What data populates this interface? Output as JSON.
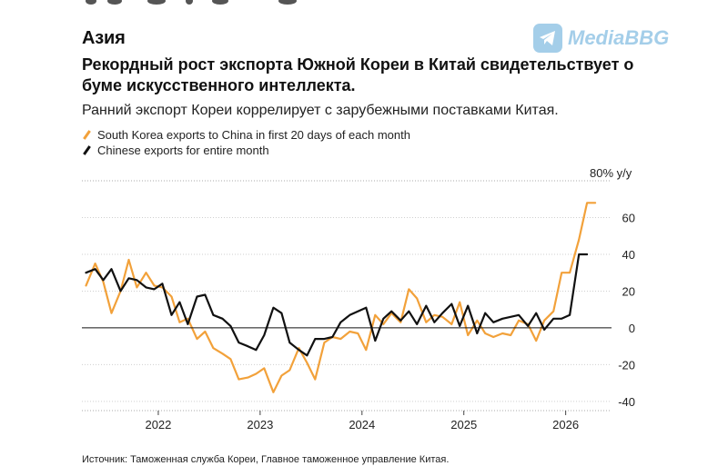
{
  "section": "Азия",
  "headline": "Рекордный рост экспорта Южной Кореи в Китай свидетельствует о буме искусственного интеллекта.",
  "subtitle": "Ранний экспорт Кореи коррелирует с зарубежными поставками Китая.",
  "watermark": "MediaBBG",
  "source": "Источник: Таможенная служба Кореи, Главное таможенное управление Китая.",
  "colors": {
    "korea": "#f2a13a",
    "china": "#111111",
    "grid": "#cfcfcf"
  },
  "chart_data": {
    "type": "line",
    "unit_label": "80% y/y",
    "ylim": [
      -45,
      80
    ],
    "y_ticks": [
      60,
      40,
      20,
      0,
      -20,
      -40
    ],
    "y_tick_labels": [
      "60",
      "40",
      "20",
      "0",
      "-20",
      "-40"
    ],
    "xlim": [
      2021.25,
      2026.45
    ],
    "x_ticks": [
      2022,
      2023,
      2024,
      2025,
      2026
    ],
    "x_tick_labels": [
      "2022",
      "2023",
      "2024",
      "2025",
      "2026"
    ],
    "legend": [
      "South Korea exports to China in first 20 days of each month",
      "Chinese exports for entire month"
    ],
    "series": [
      {
        "name": "South Korea exports to China in first 20 days of each month",
        "color": "#f2a13a",
        "x": [
          2021.29,
          2021.38,
          2021.46,
          2021.54,
          2021.63,
          2021.71,
          2021.79,
          2021.88,
          2021.96,
          2022.04,
          2022.13,
          2022.21,
          2022.29,
          2022.38,
          2022.46,
          2022.54,
          2022.63,
          2022.71,
          2022.79,
          2022.88,
          2022.96,
          2023.04,
          2023.13,
          2023.21,
          2023.29,
          2023.38,
          2023.46,
          2023.54,
          2023.63,
          2023.71,
          2023.79,
          2023.88,
          2023.96,
          2024.04,
          2024.13,
          2024.21,
          2024.29,
          2024.38,
          2024.46,
          2024.54,
          2024.63,
          2024.71,
          2024.79,
          2024.88,
          2024.96,
          2025.04,
          2025.13,
          2025.21,
          2025.29,
          2025.38,
          2025.46,
          2025.54,
          2025.63,
          2025.71,
          2025.79,
          2025.88,
          2025.96,
          2026.04,
          2026.13,
          2026.21,
          2026.29
        ],
        "values": [
          23,
          35,
          25,
          8,
          20,
          37,
          22,
          30,
          23,
          22,
          17,
          3,
          5,
          -6,
          -2,
          -11,
          -14,
          -17,
          -28,
          -27,
          -25,
          -22,
          -35,
          -26,
          -23,
          -11,
          -19,
          -28,
          -8,
          -5,
          -6,
          -2,
          -3,
          -12,
          7,
          2,
          8,
          3,
          21,
          16,
          3,
          7,
          6,
          2,
          14,
          -4,
          4,
          -3,
          -5,
          -3,
          -4,
          4,
          2,
          -7,
          4,
          9,
          30,
          30,
          48,
          68,
          68
        ]
      },
      {
        "name": "Chinese exports for entire month",
        "color": "#111111",
        "x": [
          2021.29,
          2021.38,
          2021.46,
          2021.54,
          2021.63,
          2021.71,
          2021.79,
          2021.88,
          2021.96,
          2022.04,
          2022.13,
          2022.21,
          2022.29,
          2022.38,
          2022.46,
          2022.54,
          2022.63,
          2022.71,
          2022.79,
          2022.88,
          2022.96,
          2023.04,
          2023.13,
          2023.21,
          2023.29,
          2023.38,
          2023.46,
          2023.54,
          2023.63,
          2023.71,
          2023.79,
          2023.88,
          2023.96,
          2024.04,
          2024.13,
          2024.21,
          2024.29,
          2024.38,
          2024.46,
          2024.54,
          2024.63,
          2024.71,
          2024.79,
          2024.88,
          2024.96,
          2025.04,
          2025.13,
          2025.21,
          2025.29,
          2025.38,
          2025.46,
          2025.54,
          2025.63,
          2025.71,
          2025.79,
          2025.88,
          2025.96,
          2026.04,
          2026.13,
          2026.21
        ],
        "values": [
          30,
          32,
          26,
          32,
          20,
          27,
          26,
          22,
          21,
          24,
          7,
          14,
          2,
          17,
          18,
          7,
          5,
          1,
          -8,
          -10,
          -12,
          -4,
          11,
          8,
          -8,
          -12,
          -15,
          -6,
          -6,
          -5,
          3,
          7,
          9,
          11,
          -7,
          5,
          9,
          4,
          9,
          2,
          12,
          3,
          8,
          13,
          1,
          12,
          -3,
          8,
          3,
          5,
          6,
          7,
          1,
          8,
          -1,
          5,
          5,
          7,
          40,
          40
        ]
      }
    ]
  }
}
